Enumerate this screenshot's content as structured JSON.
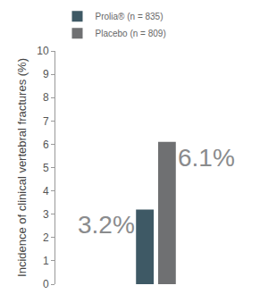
{
  "chart_data": {
    "type": "bar",
    "y_label": "Incidence of clinical vertebral fractures (%)",
    "categories": [
      null
    ],
    "series": [
      {
        "name": "Prolia® (n = 835)",
        "color": "#3e5965",
        "values": [
          3.2
        ],
        "value_labels": [
          "3.2%"
        ]
      },
      {
        "name": "Placebo (n = 809)",
        "color": "#6f7072",
        "values": [
          6.1
        ],
        "value_labels": [
          "6.1%"
        ]
      }
    ],
    "ylim": [
      0,
      10
    ],
    "yticks": [
      0,
      1,
      2,
      3,
      4,
      5,
      6,
      7,
      8,
      9,
      10
    ],
    "grid": false,
    "legend": "top-left",
    "data_labels": true
  }
}
